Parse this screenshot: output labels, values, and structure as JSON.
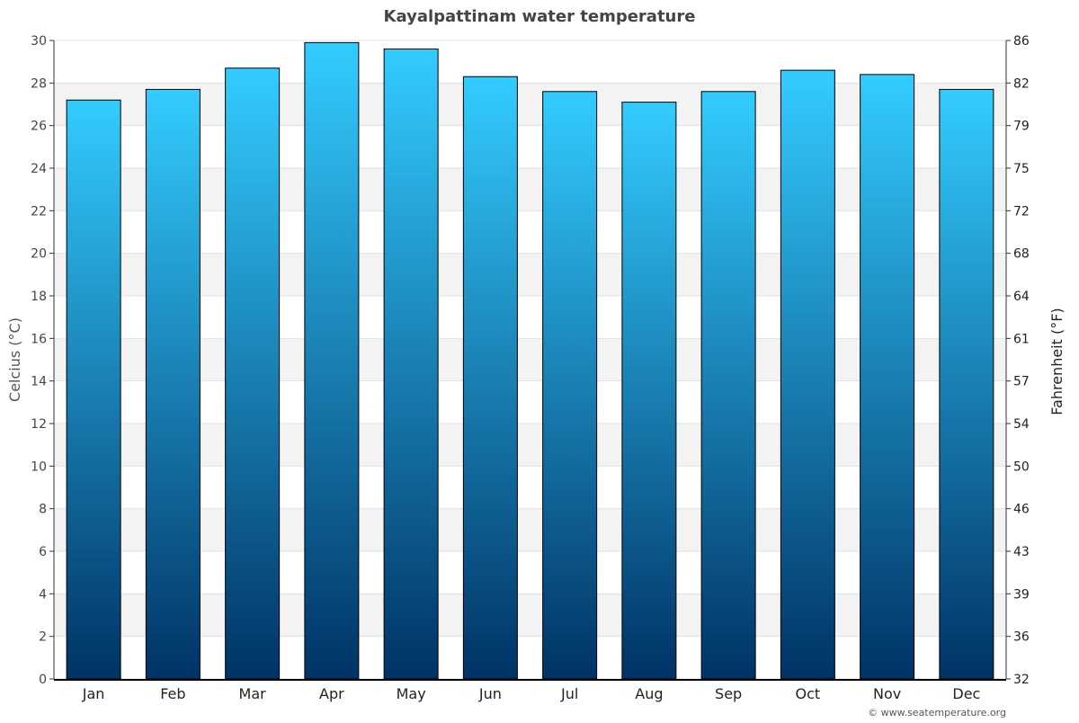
{
  "chart_data": {
    "type": "bar",
    "title": "Kayalpattinam water temperature",
    "xlabel": "",
    "ylabel": "Celcius (°C)",
    "ylabel_right": "Fahrenheit (°F)",
    "categories": [
      "Jan",
      "Feb",
      "Mar",
      "Apr",
      "May",
      "Jun",
      "Jul",
      "Aug",
      "Sep",
      "Oct",
      "Nov",
      "Dec"
    ],
    "values": [
      27.2,
      27.7,
      28.7,
      29.9,
      29.6,
      28.3,
      27.6,
      27.1,
      27.6,
      28.6,
      28.4,
      27.7
    ],
    "ylim": [
      0,
      30
    ],
    "yticks": [
      0,
      2,
      4,
      6,
      8,
      10,
      12,
      14,
      16,
      18,
      20,
      22,
      24,
      26,
      28,
      30
    ],
    "yticks_right": [
      "32",
      "36",
      "39",
      "43",
      "46",
      "50",
      "54",
      "57",
      "61",
      "64",
      "68",
      "72",
      "75",
      "79",
      "82",
      "86"
    ],
    "grid": true,
    "legend": "none",
    "colors": {
      "bar_top": "#33ccff",
      "bar_bottom": "#003366",
      "band": "#f3f3f3"
    }
  },
  "credit": "© www.seatemperature.org"
}
